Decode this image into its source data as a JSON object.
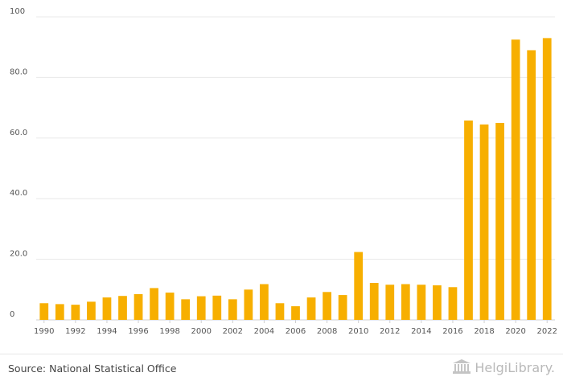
{
  "chart_data": {
    "type": "bar",
    "categories": [
      "1990",
      "1991",
      "1992",
      "1993",
      "1994",
      "1995",
      "1996",
      "1997",
      "1998",
      "1999",
      "2000",
      "2001",
      "2002",
      "2003",
      "2004",
      "2005",
      "2006",
      "2007",
      "2008",
      "2009",
      "2010",
      "2011",
      "2012",
      "2013",
      "2014",
      "2015",
      "2016",
      "2017",
      "2018",
      "2019",
      "2020",
      "2021",
      "2022"
    ],
    "x_tick_labels": [
      "1990",
      "1992",
      "1994",
      "1996",
      "1998",
      "2000",
      "2002",
      "2004",
      "2006",
      "2008",
      "2010",
      "2012",
      "2014",
      "2016",
      "2018",
      "2020",
      "2022"
    ],
    "values": [
      5.5,
      5.2,
      5.0,
      6.0,
      7.4,
      7.9,
      8.5,
      10.5,
      9.0,
      6.8,
      7.8,
      8.0,
      6.8,
      10.0,
      11.8,
      5.5,
      4.5,
      7.4,
      9.2,
      8.2,
      22.4,
      12.2,
      11.6,
      11.8,
      11.6,
      11.4,
      10.8,
      65.8,
      64.5,
      65.0,
      92.5,
      89.0,
      93.0
    ],
    "ylim": [
      0,
      100
    ],
    "y_ticks": [
      {
        "value": 0,
        "label": "0"
      },
      {
        "value": 20,
        "label": "20.0"
      },
      {
        "value": 40,
        "label": "40.0"
      },
      {
        "value": 60,
        "label": "60.0"
      },
      {
        "value": 80,
        "label": "80.0"
      },
      {
        "value": 100,
        "label": "100"
      }
    ],
    "grid": true,
    "bar_color": "#F7AF00",
    "title": "",
    "xlabel": "",
    "ylabel": ""
  },
  "footer": {
    "source": "Source: National Statistical Office",
    "logo_text": "HelgiLibrary."
  }
}
